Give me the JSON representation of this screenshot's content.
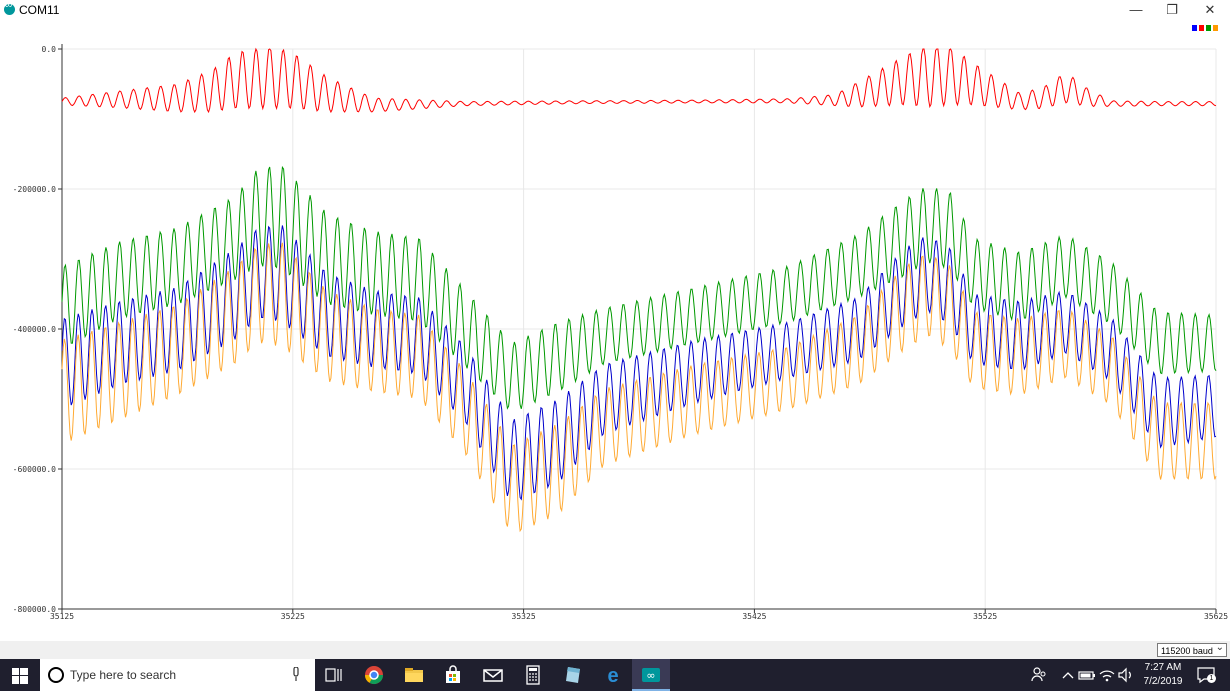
{
  "window": {
    "title": "COM11",
    "minimize_glyph": "—",
    "maximize_glyph": "❐",
    "close_glyph": "✕"
  },
  "legend_colors": [
    "#0000ff",
    "#ff0000",
    "#009900",
    "#ff9900"
  ],
  "chart_data": {
    "type": "line",
    "ylim": [
      -800000,
      0
    ],
    "xlim": [
      35125,
      35625
    ],
    "y_ticks": [
      0,
      -200000,
      -400000,
      -600000,
      -800000
    ],
    "y_tick_labels": [
      "0.0",
      "-200000.0",
      "-400000.0",
      "-600000.0",
      "-800000.0"
    ],
    "x_ticks": [
      35125,
      35225,
      35325,
      35425,
      35525,
      35625
    ],
    "x_tick_labels": [
      "35125",
      "35225",
      "35325",
      "35425",
      "35525",
      "35625"
    ],
    "grid": true,
    "series": [
      {
        "color": "#ff0000",
        "envelope_x": [
          35125,
          35150,
          35175,
          35190,
          35200,
          35215,
          35225,
          35240,
          35260,
          35300,
          35350,
          35400,
          35440,
          35460,
          35470,
          35490,
          35500,
          35510,
          35520,
          35540,
          35550,
          35560,
          35570,
          35580,
          35600,
          35625
        ],
        "center": [
          -75000,
          -72000,
          -70000,
          -60000,
          -45000,
          -40000,
          -45000,
          -65000,
          -80000,
          -78000,
          -76000,
          -75000,
          -74000,
          -73000,
          -65000,
          -45000,
          -38000,
          -38000,
          -50000,
          -75000,
          -70000,
          -55000,
          -70000,
          -78000,
          -78000,
          -78000
        ],
        "amplitude": [
          5000,
          12000,
          20000,
          30000,
          40000,
          45000,
          40000,
          25000,
          10000,
          3000,
          2000,
          2000,
          3000,
          8000,
          18000,
          35000,
          45000,
          42000,
          30000,
          12000,
          15000,
          22000,
          12000,
          4000,
          3000,
          3000
        ]
      },
      {
        "color": "#009900",
        "envelope_x": [
          35125,
          35150,
          35175,
          35200,
          35210,
          35220,
          35240,
          35260,
          35280,
          35300,
          35320,
          35340,
          35360,
          35400,
          35440,
          35470,
          35490,
          35500,
          35510,
          35520,
          35540,
          35560,
          35580,
          35600,
          35625
        ],
        "center": [
          -370000,
          -330000,
          -310000,
          -270000,
          -240000,
          -240000,
          -300000,
          -320000,
          -330000,
          -400000,
          -470000,
          -440000,
          -410000,
          -380000,
          -350000,
          -310000,
          -270000,
          -250000,
          -260000,
          -320000,
          -340000,
          -310000,
          -350000,
          -420000,
          -420000
        ],
        "amplitude": [
          60000,
          55000,
          55000,
          60000,
          70000,
          75000,
          65000,
          60000,
          60000,
          55000,
          50000,
          50000,
          40000,
          40000,
          40000,
          45000,
          55000,
          55000,
          55000,
          50000,
          50000,
          45000,
          45000,
          45000,
          40000
        ]
      },
      {
        "color": "#0000cc",
        "envelope_x": [
          35125,
          35150,
          35175,
          35200,
          35210,
          35220,
          35240,
          35260,
          35280,
          35300,
          35320,
          35340,
          35360,
          35400,
          35440,
          35470,
          35490,
          35500,
          35510,
          35520,
          35540,
          35560,
          35580,
          35600,
          35625
        ],
        "center": [
          -450000,
          -420000,
          -400000,
          -350000,
          -320000,
          -320000,
          -380000,
          -400000,
          -410000,
          -480000,
          -590000,
          -560000,
          -500000,
          -460000,
          -430000,
          -400000,
          -340000,
          -320000,
          -340000,
          -400000,
          -410000,
          -390000,
          -430000,
          -520000,
          -510000
        ],
        "amplitude": [
          65000,
          60000,
          60000,
          65000,
          65000,
          70000,
          60000,
          55000,
          55000,
          55000,
          60000,
          60000,
          50000,
          45000,
          40000,
          45000,
          55000,
          55000,
          55000,
          50000,
          50000,
          45000,
          45000,
          50000,
          45000
        ]
      },
      {
        "color": "#ffaa33",
        "envelope_x": [
          35125,
          35150,
          35175,
          35200,
          35210,
          35220,
          35240,
          35260,
          35280,
          35300,
          35320,
          35340,
          35360,
          35400,
          35440,
          35470,
          35490,
          35500,
          35510,
          35520,
          35540,
          35560,
          35580,
          35600,
          35625
        ],
        "center": [
          -490000,
          -460000,
          -430000,
          -380000,
          -350000,
          -350000,
          -410000,
          -430000,
          -440000,
          -520000,
          -630000,
          -600000,
          -540000,
          -500000,
          -470000,
          -430000,
          -370000,
          -350000,
          -370000,
          -430000,
          -440000,
          -420000,
          -460000,
          -560000,
          -560000
        ],
        "amplitude": [
          75000,
          70000,
          65000,
          70000,
          70000,
          75000,
          65000,
          60000,
          60000,
          60000,
          65000,
          65000,
          55000,
          50000,
          45000,
          50000,
          60000,
          60000,
          60000,
          55000,
          55000,
          50000,
          50000,
          55000,
          55000
        ]
      }
    ]
  },
  "bottom": {
    "baud": "115200 baud"
  },
  "taskbar": {
    "search_placeholder": "Type here to search",
    "time": "7:27 AM",
    "date": "7/2/2019",
    "notification_count": "1"
  }
}
